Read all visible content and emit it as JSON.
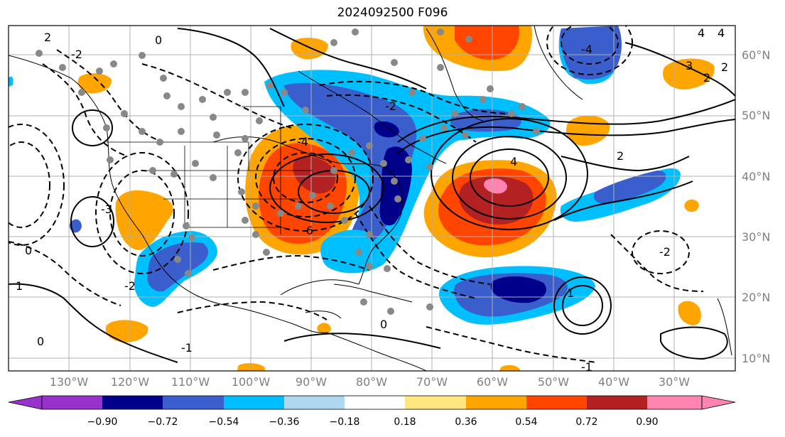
{
  "title": "2024092500 F096",
  "map": {
    "lat_labels": [
      "60°N",
      "50°N",
      "40°N",
      "30°N",
      "20°N",
      "10°N"
    ],
    "lon_labels": [
      "130°W",
      "120°W",
      "110°W",
      "100°W",
      "90°W",
      "80°W",
      "70°W",
      "60°W",
      "50°W",
      "40°W",
      "30°W"
    ],
    "contour_labels": [
      "0",
      "2",
      "-2",
      "4",
      "-4",
      "3",
      "-3",
      "1",
      "-1",
      "2",
      "-2",
      "0",
      "4",
      "-4",
      "-6",
      "2",
      "-2",
      "0",
      "1",
      "-1",
      "2",
      "4",
      "-2",
      "0"
    ]
  },
  "colorbar": {
    "ticks": [
      "−0.90",
      "−0.72",
      "−0.54",
      "−0.36",
      "−0.18",
      "0.18",
      "0.36",
      "0.54",
      "0.72",
      "0.90"
    ],
    "colors": [
      "#9932cc",
      "#00008b",
      "#3a5fcd",
      "#00bfff",
      "#add8f0",
      "#ffffff",
      "#ffe680",
      "#ffa500",
      "#ff4500",
      "#b22222",
      "#ff85b0"
    ]
  }
}
